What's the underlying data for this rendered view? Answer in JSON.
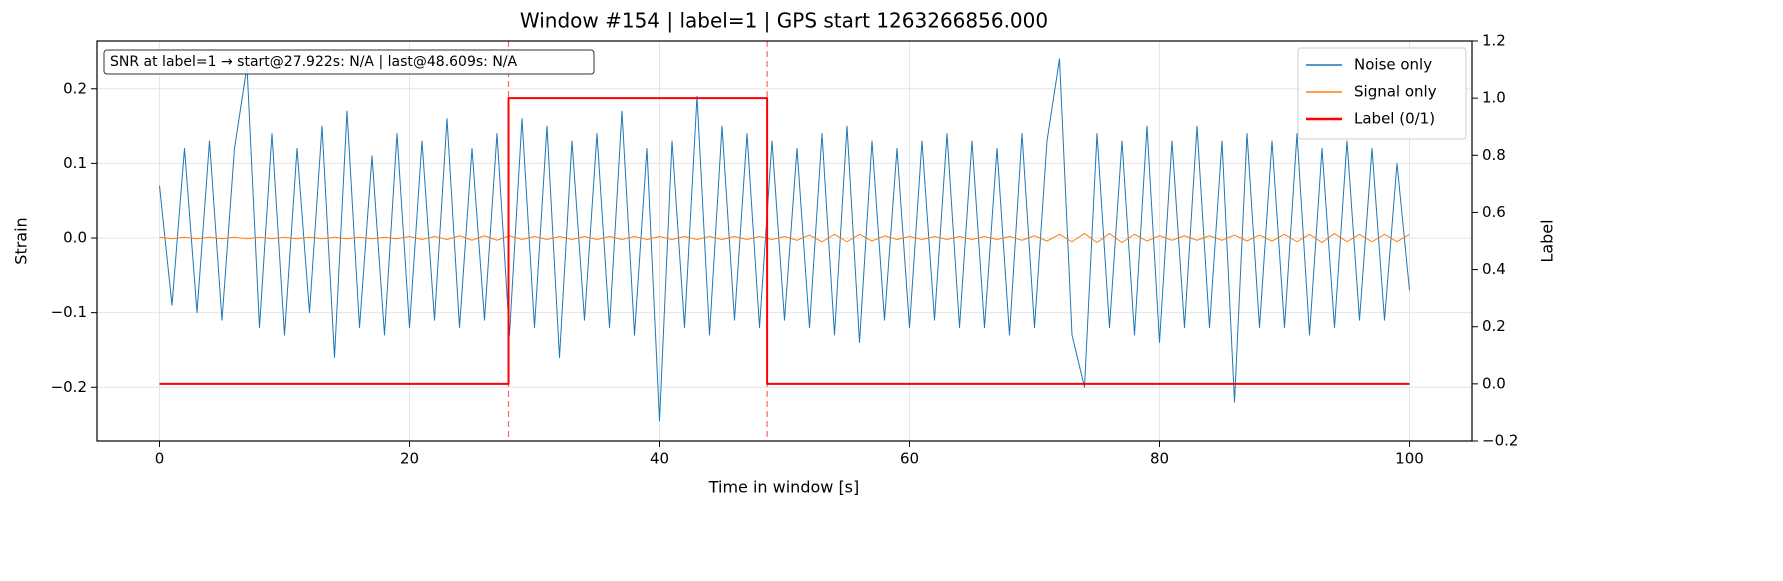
{
  "chart_data": {
    "type": "line",
    "title": "Window #154  |  label=1  |  GPS start 1263266856.000",
    "xlabel": "Time in window [s]",
    "ylabel": "Strain",
    "y2label": "Label",
    "annotation": "SNR at label=1 → start@27.922s: N/A | last@48.609s: N/A",
    "xlim": [
      -5,
      105
    ],
    "xticks": [
      0,
      20,
      40,
      60,
      80,
      100
    ],
    "ylim": [
      -0.272,
      0.264
    ],
    "yticks": [
      {
        "value": -0.2,
        "label": "−0.2"
      },
      {
        "value": -0.1,
        "label": "−0.1"
      },
      {
        "value": 0,
        "label": "0.0"
      },
      {
        "value": 0.1,
        "label": "0.1"
      },
      {
        "value": 0.2,
        "label": "0.2"
      }
    ],
    "y2lim": [
      -0.2,
      1.2
    ],
    "y2ticks": [
      {
        "value": -0.2,
        "label": "−0.2"
      },
      {
        "value": 0,
        "label": "0.0"
      },
      {
        "value": 0.2,
        "label": "0.2"
      },
      {
        "value": 0.4,
        "label": "0.4"
      },
      {
        "value": 0.6,
        "label": "0.6"
      },
      {
        "value": 0.8,
        "label": "0.8"
      },
      {
        "value": 1,
        "label": "1.0"
      },
      {
        "value": 1.2,
        "label": "1.2"
      }
    ],
    "grid": true,
    "legend": "upper right",
    "vlines": [
      27.922,
      48.609
    ],
    "vline_color": "#ff0000",
    "series": [
      {
        "name": "Noise only",
        "color": "#1f77b4",
        "width": 1,
        "x": [
          0,
          1,
          2,
          3,
          4,
          5,
          6,
          7,
          8,
          9,
          10,
          11,
          12,
          13,
          14,
          15,
          16,
          17,
          18,
          19,
          20,
          21,
          22,
          23,
          24,
          25,
          26,
          27,
          28,
          29,
          30,
          31,
          32,
          33,
          34,
          35,
          36,
          37,
          38,
          39,
          40,
          41,
          42,
          43,
          44,
          45,
          46,
          47,
          48,
          49,
          50,
          51,
          52,
          53,
          54,
          55,
          56,
          57,
          58,
          59,
          60,
          61,
          62,
          63,
          64,
          65,
          66,
          67,
          68,
          69,
          70,
          71,
          72,
          73,
          74,
          75,
          76,
          77,
          78,
          79,
          80,
          81,
          82,
          83,
          84,
          85,
          86,
          87,
          88,
          89,
          90,
          91,
          92,
          93,
          94,
          95,
          96,
          97,
          98,
          99,
          100
        ],
        "values": [
          0.07,
          -0.09,
          0.12,
          -0.1,
          0.13,
          -0.11,
          0.12,
          0.23,
          -0.12,
          0.14,
          -0.13,
          0.12,
          -0.1,
          0.15,
          -0.16,
          0.17,
          -0.12,
          0.11,
          -0.13,
          0.14,
          -0.12,
          0.13,
          -0.11,
          0.16,
          -0.12,
          0.12,
          -0.11,
          0.14,
          -0.13,
          0.16,
          -0.12,
          0.15,
          -0.16,
          0.13,
          -0.11,
          0.14,
          -0.12,
          0.17,
          -0.13,
          0.12,
          -0.245,
          0.13,
          -0.12,
          0.19,
          -0.13,
          0.15,
          -0.11,
          0.14,
          -0.12,
          0.13,
          -0.11,
          0.12,
          -0.12,
          0.14,
          -0.13,
          0.15,
          -0.14,
          0.13,
          -0.11,
          0.12,
          -0.12,
          0.13,
          -0.11,
          0.14,
          -0.12,
          0.13,
          -0.12,
          0.12,
          -0.13,
          0.14,
          -0.12,
          0.13,
          0.24,
          -0.13,
          -0.2,
          0.14,
          -0.12,
          0.13,
          -0.13,
          0.15,
          -0.14,
          0.13,
          -0.12,
          0.15,
          -0.12,
          0.13,
          -0.22,
          0.14,
          -0.12,
          0.13,
          -0.12,
          0.14,
          -0.13,
          0.12,
          -0.12,
          0.13,
          -0.11,
          0.12,
          -0.11,
          0.1,
          -0.07
        ]
      },
      {
        "name": "Signal only",
        "color": "#ff7f0e",
        "width": 1,
        "x": [
          0,
          1,
          2,
          3,
          4,
          5,
          6,
          7,
          8,
          9,
          10,
          11,
          12,
          13,
          14,
          15,
          16,
          17,
          18,
          19,
          20,
          21,
          22,
          23,
          24,
          25,
          26,
          27,
          28,
          29,
          30,
          31,
          32,
          33,
          34,
          35,
          36,
          37,
          38,
          39,
          40,
          41,
          42,
          43,
          44,
          45,
          46,
          47,
          48,
          49,
          50,
          51,
          52,
          53,
          54,
          55,
          56,
          57,
          58,
          59,
          60,
          61,
          62,
          63,
          64,
          65,
          66,
          67,
          68,
          69,
          70,
          71,
          72,
          73,
          74,
          75,
          76,
          77,
          78,
          79,
          80,
          81,
          82,
          83,
          84,
          85,
          86,
          87,
          88,
          89,
          90,
          91,
          92,
          93,
          94,
          95,
          96,
          97,
          98,
          99,
          100
        ],
        "values": [
          0.001,
          -0.001,
          0.001,
          -0.001,
          0.001,
          -0.001,
          0.001,
          -0.001,
          0.001,
          -0.001,
          0.001,
          -0.001,
          0.001,
          -0.001,
          0.001,
          -0.001,
          0.001,
          -0.001,
          0.001,
          -0.001,
          0.002,
          -0.002,
          0.002,
          -0.002,
          0.003,
          -0.003,
          0.003,
          -0.003,
          0.003,
          -0.002,
          0.002,
          -0.002,
          0.002,
          -0.002,
          0.002,
          -0.002,
          0.002,
          -0.002,
          0.002,
          -0.002,
          0.002,
          -0.002,
          0.002,
          -0.002,
          0.002,
          -0.002,
          0.002,
          -0.002,
          0.002,
          -0.002,
          0.002,
          -0.003,
          0.004,
          -0.005,
          0.005,
          -0.005,
          0.005,
          -0.004,
          0.003,
          -0.002,
          0.002,
          -0.002,
          0.002,
          -0.002,
          0.002,
          -0.002,
          0.002,
          -0.002,
          0.002,
          -0.003,
          0.003,
          -0.004,
          0.005,
          -0.005,
          0.006,
          -0.006,
          0.006,
          -0.006,
          0.005,
          -0.004,
          0.003,
          -0.003,
          0.003,
          -0.003,
          0.003,
          -0.003,
          0.004,
          -0.004,
          0.004,
          -0.004,
          0.005,
          -0.005,
          0.005,
          -0.006,
          0.006,
          -0.005,
          0.005,
          -0.005,
          0.005,
          -0.005,
          0.005
        ]
      },
      {
        "name": "Label (0/1)",
        "color": "#ff0000",
        "width": 2,
        "axis": "y2",
        "x": [
          0,
          27.922,
          27.922,
          48.609,
          48.609,
          100
        ],
        "values": [
          0,
          0,
          1,
          1,
          0,
          0
        ]
      }
    ]
  }
}
